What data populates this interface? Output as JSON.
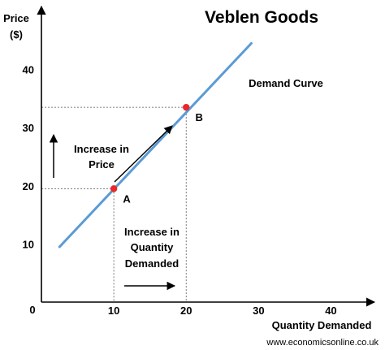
{
  "chart_data": {
    "type": "line",
    "title": "Veblen Goods",
    "xlabel": "Quantity Demanded",
    "ylabel": "Price ($)",
    "ylabel_lines": [
      "Price",
      "($)"
    ],
    "xlim": [
      0,
      45
    ],
    "ylim": [
      0,
      50
    ],
    "x_ticks": [
      0,
      10,
      20,
      30,
      40
    ],
    "y_ticks": [
      10,
      20,
      30,
      40
    ],
    "origin_label": "0",
    "grid": false,
    "series": [
      {
        "name": "Demand Curve",
        "color": "#5b9bd5",
        "x": [
          2.5,
          29
        ],
        "y": [
          9.5,
          44.5
        ]
      }
    ],
    "points": [
      {
        "label": "A",
        "x": 10,
        "y": 19.5,
        "color": "#e8282b"
      },
      {
        "label": "B",
        "x": 20,
        "y": 33.5,
        "color": "#e8282b"
      }
    ],
    "annotations": {
      "price_increase": [
        "Increase in",
        "Price"
      ],
      "quantity_increase": [
        "Increase in",
        "Quantity",
        "Demanded"
      ]
    }
  },
  "source": "www.economicsonline.co.uk"
}
